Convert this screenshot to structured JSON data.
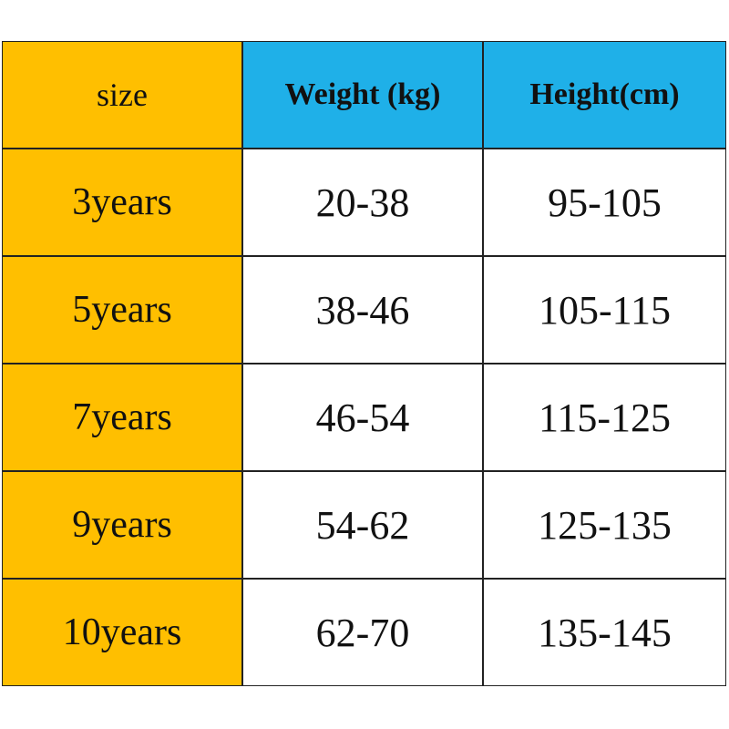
{
  "table": {
    "header": [
      "size",
      "Weight (kg)",
      "Height(cm)"
    ],
    "rows": [
      [
        "3years",
        "20-38",
        "95-105"
      ],
      [
        "5years",
        "38-46",
        "105-115"
      ],
      [
        "7years",
        "46-54",
        "115-125"
      ],
      [
        "9years",
        "54-62",
        "125-135"
      ],
      [
        "10years",
        "62-70",
        "135-145"
      ]
    ]
  }
}
